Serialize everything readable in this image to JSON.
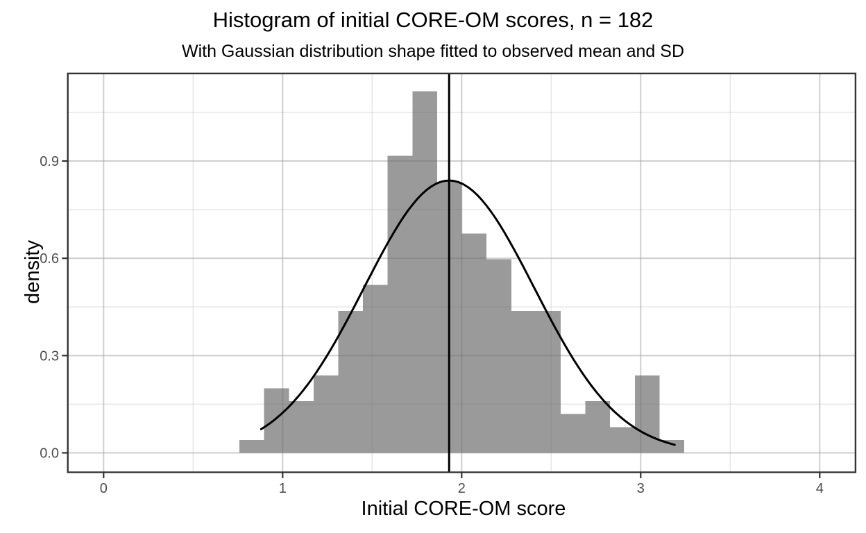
{
  "chart_data": {
    "type": "bar",
    "subtype": "histogram-with-gaussian-overlay",
    "title": "Histogram of initial CORE-OM scores, n = 182",
    "subtitle": "With Gaussian distribution shape fitted to observed mean and SD",
    "xlabel": "Initial CORE-OM score",
    "ylabel": "density",
    "n": 182,
    "x_axis": {
      "ticks": [
        0,
        1,
        2,
        3,
        4
      ],
      "tick_labels": [
        "0",
        "1",
        "2",
        "3",
        "4"
      ],
      "minor_ticks": [
        0.5,
        1.5,
        2.5,
        3.5
      ],
      "range": [
        -0.2,
        4.2
      ]
    },
    "y_axis": {
      "ticks": [
        0,
        0.3,
        0.6,
        0.9
      ],
      "tick_labels": [
        "0.0",
        "0.3",
        "0.6",
        "0.9"
      ],
      "minor_ticks": [
        0.15,
        0.45,
        0.75,
        1.05
      ],
      "range": [
        -0.06,
        1.17
      ]
    },
    "histogram": {
      "bin_start": 0.759,
      "bin_width": 0.138,
      "counts": [
        1,
        5,
        4,
        6,
        11,
        13,
        23,
        28,
        21,
        17,
        15,
        11,
        11,
        3,
        4,
        2,
        6,
        1
      ],
      "densities": [
        0.04,
        0.199,
        0.159,
        0.239,
        0.438,
        0.518,
        0.916,
        1.115,
        0.836,
        0.677,
        0.597,
        0.438,
        0.438,
        0.119,
        0.159,
        0.08,
        0.239,
        0.04
      ],
      "bar_color": "#9A9A9A"
    },
    "gaussian_fit": {
      "mean": 1.93,
      "sd": 0.475,
      "peak_density": 0.84,
      "x_from": 0.88,
      "x_to": 3.19,
      "color": "#000000"
    },
    "mean_line": {
      "x": 1.93,
      "color": "#000000"
    },
    "grid": {
      "major_color_on_white": "#E6E6E6",
      "minor_color_on_white": "#F2F2F2",
      "major_overlay_rgba": "rgba(0,0,0,0.10)",
      "minor_overlay_rgba": "rgba(0,0,0,0.05)"
    },
    "colors": {
      "panel_border": "#333333",
      "tick_mark": "#333333",
      "tick_label": "#4D4D4D",
      "title_text": "#000000",
      "background": "#FFFFFF",
      "legend": "none"
    }
  }
}
